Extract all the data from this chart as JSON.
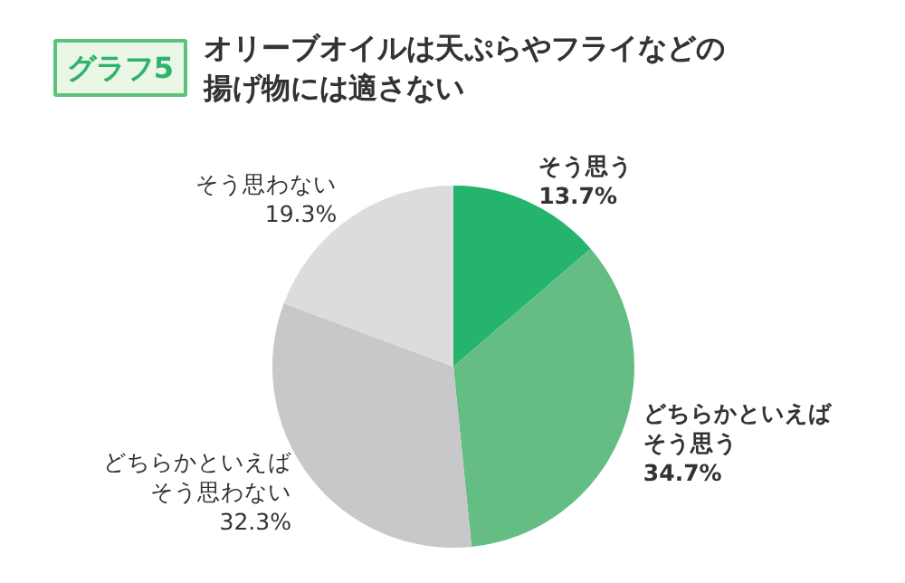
{
  "chart_data": {
    "type": "pie",
    "title": "オリーブオイルは天ぷらやフライなどの揚げ物には適さない",
    "annotations": [
      "グラフ5"
    ],
    "categories": [
      "そう思う",
      "どちらかといえばそう思う",
      "どちらかといえばそう思わない",
      "そう思わない"
    ],
    "values": [
      13.7,
      34.7,
      32.3,
      19.3
    ],
    "colors": [
      "#25b46e",
      "#64be84",
      "#c8c8cb",
      "#dcdcdc"
    ],
    "value_labels": [
      "13.7%",
      "34.7%",
      "32.3%",
      "19.3%"
    ]
  }
}
